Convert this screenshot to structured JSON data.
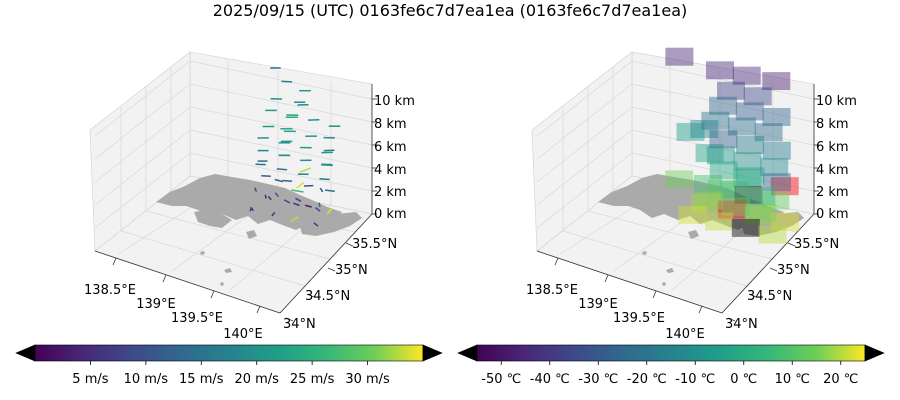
{
  "figure": {
    "title": "2025/09/15 (UTC) 0163fe6c7d7ea1ea (0163fe6c7d7ea1ea)"
  },
  "chart_data": [
    {
      "type": "scatter",
      "kind": "3d-wind-vectors",
      "x_ticks": [
        "138.5°E",
        "139°E",
        "139.5°E",
        "140°E"
      ],
      "y_ticks": [
        "34°N",
        "34.5°N",
        "35°N",
        "35.5°N"
      ],
      "z_ticks": [
        "0 km",
        "2 km",
        "4 km",
        "6 km",
        "8 km",
        "10 km"
      ],
      "grid": true,
      "colorbar": {
        "colormap": "viridis",
        "ticks": [
          "5 m/s",
          "10 m/s",
          "15 m/s",
          "20 m/s",
          "25 m/s",
          "30 m/s"
        ],
        "tick_values": [
          5,
          10,
          15,
          20,
          25,
          30
        ],
        "range": [
          0,
          35
        ],
        "extend_low_color": "#000000",
        "extend_high_color": "#ff0000"
      },
      "levels_km": [
        1,
        1.6,
        2.4,
        3.3,
        4.2,
        5.2,
        6.3,
        7.4,
        8.6,
        9.7,
        10.9
      ],
      "vectors": [
        {
          "lon": 139.2,
          "lat": 35.18,
          "alt_km": 1.0,
          "speed": 4,
          "dir_deg": 160
        },
        {
          "lon": 139.4,
          "lat": 35.18,
          "alt_km": 1.0,
          "speed": 6,
          "dir_deg": 200
        },
        {
          "lon": 139.6,
          "lat": 35.18,
          "alt_km": 1.0,
          "speed": 33,
          "dir_deg": 215
        },
        {
          "lon": 139.8,
          "lat": 35.18,
          "alt_km": 1.0,
          "speed": 7,
          "dir_deg": 150
        },
        {
          "lon": 139.2,
          "lat": 35.45,
          "alt_km": 1.0,
          "speed": 5,
          "dir_deg": 175
        },
        {
          "lon": 139.4,
          "lat": 35.45,
          "alt_km": 1.0,
          "speed": 8,
          "dir_deg": 140
        },
        {
          "lon": 139.6,
          "lat": 35.45,
          "alt_km": 1.0,
          "speed": 3,
          "dir_deg": 120
        },
        {
          "lon": 139.8,
          "lat": 35.45,
          "alt_km": 1.0,
          "speed": 34,
          "dir_deg": 200
        },
        {
          "lon": 139.3,
          "lat": 35.32,
          "alt_km": 1.6,
          "speed": 6,
          "dir_deg": 160
        },
        {
          "lon": 139.55,
          "lat": 35.32,
          "alt_km": 1.6,
          "speed": 5,
          "dir_deg": 130
        },
        {
          "lon": 139.75,
          "lat": 35.32,
          "alt_km": 1.6,
          "speed": 9,
          "dir_deg": 150
        },
        {
          "lon": 139.45,
          "lat": 35.55,
          "alt_km": 1.6,
          "speed": 27,
          "dir_deg": 110
        },
        {
          "lon": 139.25,
          "lat": 35.05,
          "alt_km": 1.6,
          "speed": 7,
          "dir_deg": 190
        },
        {
          "lon": 139.2,
          "lat": 35.25,
          "alt_km": 2.4,
          "speed": 9,
          "dir_deg": 170
        },
        {
          "lon": 139.4,
          "lat": 35.25,
          "alt_km": 2.4,
          "speed": 10,
          "dir_deg": 160
        },
        {
          "lon": 139.6,
          "lat": 35.25,
          "alt_km": 2.4,
          "speed": 8,
          "dir_deg": 140
        },
        {
          "lon": 139.8,
          "lat": 35.25,
          "alt_km": 2.4,
          "speed": 12,
          "dir_deg": 175
        },
        {
          "lon": 139.3,
          "lat": 35.5,
          "alt_km": 2.4,
          "speed": 11,
          "dir_deg": 120
        },
        {
          "lon": 139.5,
          "lat": 35.5,
          "alt_km": 2.4,
          "speed": 34,
          "dir_deg": 210
        },
        {
          "lon": 139.7,
          "lat": 35.5,
          "alt_km": 2.4,
          "speed": 9,
          "dir_deg": 165
        },
        {
          "lon": 139.25,
          "lat": 35.35,
          "alt_km": 3.3,
          "speed": 12,
          "dir_deg": 95
        },
        {
          "lon": 139.45,
          "lat": 35.35,
          "alt_km": 3.3,
          "speed": 13,
          "dir_deg": 100
        },
        {
          "lon": 139.65,
          "lat": 35.35,
          "alt_km": 3.3,
          "speed": 11,
          "dir_deg": 85
        },
        {
          "lon": 139.85,
          "lat": 35.35,
          "alt_km": 3.3,
          "speed": 14,
          "dir_deg": 105
        },
        {
          "lon": 139.1,
          "lat": 35.6,
          "alt_km": 3.3,
          "speed": 13,
          "dir_deg": 90
        },
        {
          "lon": 139.5,
          "lat": 35.6,
          "alt_km": 3.3,
          "speed": 33,
          "dir_deg": 230
        },
        {
          "lon": 139.2,
          "lat": 35.35,
          "alt_km": 4.2,
          "speed": 15,
          "dir_deg": 95
        },
        {
          "lon": 139.4,
          "lat": 35.35,
          "alt_km": 4.2,
          "speed": 16,
          "dir_deg": 100
        },
        {
          "lon": 139.6,
          "lat": 35.35,
          "alt_km": 4.2,
          "speed": 17,
          "dir_deg": 92
        },
        {
          "lon": 139.8,
          "lat": 35.35,
          "alt_km": 4.2,
          "speed": 15,
          "dir_deg": 98
        },
        {
          "lon": 139.3,
          "lat": 35.6,
          "alt_km": 4.2,
          "speed": 16,
          "dir_deg": 88
        },
        {
          "lon": 139.7,
          "lat": 35.6,
          "alt_km": 4.2,
          "speed": 18,
          "dir_deg": 95
        },
        {
          "lon": 139.2,
          "lat": 35.4,
          "alt_km": 5.2,
          "speed": 18,
          "dir_deg": 90
        },
        {
          "lon": 139.4,
          "lat": 35.4,
          "alt_km": 5.2,
          "speed": 20,
          "dir_deg": 92
        },
        {
          "lon": 139.6,
          "lat": 35.4,
          "alt_km": 5.2,
          "speed": 19,
          "dir_deg": 88
        },
        {
          "lon": 139.8,
          "lat": 35.4,
          "alt_km": 5.2,
          "speed": 21,
          "dir_deg": 95
        },
        {
          "lon": 139.3,
          "lat": 35.65,
          "alt_km": 5.2,
          "speed": 20,
          "dir_deg": 90
        },
        {
          "lon": 139.7,
          "lat": 35.65,
          "alt_km": 5.2,
          "speed": 17,
          "dir_deg": 86
        },
        {
          "lon": 139.2,
          "lat": 35.4,
          "alt_km": 6.3,
          "speed": 20,
          "dir_deg": 88
        },
        {
          "lon": 139.4,
          "lat": 35.4,
          "alt_km": 6.3,
          "speed": 21,
          "dir_deg": 90
        },
        {
          "lon": 139.6,
          "lat": 35.4,
          "alt_km": 6.3,
          "speed": 22,
          "dir_deg": 92
        },
        {
          "lon": 139.8,
          "lat": 35.4,
          "alt_km": 6.3,
          "speed": 20,
          "dir_deg": 87
        },
        {
          "lon": 139.3,
          "lat": 35.65,
          "alt_km": 6.3,
          "speed": 23,
          "dir_deg": 90
        },
        {
          "lon": 139.7,
          "lat": 35.65,
          "alt_km": 6.3,
          "speed": 19,
          "dir_deg": 94
        },
        {
          "lon": 139.25,
          "lat": 35.4,
          "alt_km": 7.4,
          "speed": 22,
          "dir_deg": 89
        },
        {
          "lon": 139.45,
          "lat": 35.4,
          "alt_km": 7.4,
          "speed": 23,
          "dir_deg": 91
        },
        {
          "lon": 139.65,
          "lat": 35.4,
          "alt_km": 7.4,
          "speed": 21,
          "dir_deg": 88
        },
        {
          "lon": 139.35,
          "lat": 35.65,
          "alt_km": 7.4,
          "speed": 24,
          "dir_deg": 92
        },
        {
          "lon": 139.75,
          "lat": 35.65,
          "alt_km": 7.4,
          "speed": 20,
          "dir_deg": 90
        },
        {
          "lon": 139.25,
          "lat": 35.45,
          "alt_km": 8.6,
          "speed": 21,
          "dir_deg": 90
        },
        {
          "lon": 139.45,
          "lat": 35.45,
          "alt_km": 8.6,
          "speed": 22,
          "dir_deg": 93
        },
        {
          "lon": 139.65,
          "lat": 35.45,
          "alt_km": 8.6,
          "speed": 20,
          "dir_deg": 87
        },
        {
          "lon": 139.4,
          "lat": 35.7,
          "alt_km": 8.6,
          "speed": 19,
          "dir_deg": 90
        },
        {
          "lon": 139.3,
          "lat": 35.45,
          "alt_km": 9.7,
          "speed": 20,
          "dir_deg": 92
        },
        {
          "lon": 139.55,
          "lat": 35.45,
          "alt_km": 9.7,
          "speed": 18,
          "dir_deg": 88
        },
        {
          "lon": 139.45,
          "lat": 35.7,
          "alt_km": 9.7,
          "speed": 21,
          "dir_deg": 90
        },
        {
          "lon": 139.35,
          "lat": 35.55,
          "alt_km": 10.9,
          "speed": 17,
          "dir_deg": 95
        },
        {
          "lon": 139.15,
          "lat": 35.75,
          "alt_km": 10.9,
          "speed": 16,
          "dir_deg": 88
        }
      ]
    },
    {
      "type": "heatmap",
      "kind": "3d-temperature-voxels",
      "x_ticks": [
        "138.5°E",
        "139°E",
        "139.5°E",
        "140°E"
      ],
      "y_ticks": [
        "34°N",
        "34.5°N",
        "35°N",
        "35.5°N"
      ],
      "z_ticks": [
        "0 km",
        "2 km",
        "4 km",
        "6 km",
        "8 km",
        "10 km"
      ],
      "grid": true,
      "colorbar": {
        "colormap": "viridis",
        "ticks": [
          "-50 ℃",
          "-40 ℃",
          "-30 ℃",
          "-20 ℃",
          "-10 ℃",
          "0 ℃",
          "10 ℃",
          "20 ℃"
        ],
        "tick_values": [
          -50,
          -40,
          -30,
          -20,
          -10,
          0,
          10,
          20
        ],
        "range": [
          -55,
          25
        ],
        "extend_low_color": "#ff0000",
        "extend_high_color": "#000000"
      },
      "voxels": [
        {
          "lon": 139.2,
          "lat": 35.15,
          "alt_km": 0.6,
          "temp": 22
        },
        {
          "lon": 139.45,
          "lat": 35.15,
          "alt_km": 0.6,
          "temp": 21
        },
        {
          "lon": 139.7,
          "lat": 35.15,
          "alt_km": 0.6,
          "temp": 26
        },
        {
          "lon": 139.95,
          "lat": 35.15,
          "alt_km": 0.6,
          "temp": 20
        },
        {
          "lon": 139.2,
          "lat": 35.4,
          "alt_km": 0.6,
          "temp": 19
        },
        {
          "lon": 139.45,
          "lat": 35.4,
          "alt_km": 0.6,
          "temp": -58
        },
        {
          "lon": 139.7,
          "lat": 35.4,
          "alt_km": 0.6,
          "temp": 18
        },
        {
          "lon": 139.95,
          "lat": 35.4,
          "alt_km": 0.6,
          "temp": 23
        },
        {
          "lon": 139.3,
          "lat": 35.27,
          "alt_km": 1.6,
          "temp": 17
        },
        {
          "lon": 139.55,
          "lat": 35.27,
          "alt_km": 1.6,
          "temp": 14
        },
        {
          "lon": 139.8,
          "lat": 35.27,
          "alt_km": 1.6,
          "temp": 16
        },
        {
          "lon": 139.3,
          "lat": 35.52,
          "alt_km": 1.6,
          "temp": 12
        },
        {
          "lon": 139.55,
          "lat": 35.52,
          "alt_km": 1.6,
          "temp": 26
        },
        {
          "lon": 139.8,
          "lat": 35.52,
          "alt_km": 1.6,
          "temp": 13
        },
        {
          "lon": 138.9,
          "lat": 35.52,
          "alt_km": 1.6,
          "temp": 15
        },
        {
          "lon": 139.25,
          "lat": 35.35,
          "alt_km": 2.6,
          "temp": 8
        },
        {
          "lon": 139.5,
          "lat": 35.35,
          "alt_km": 2.6,
          "temp": 6
        },
        {
          "lon": 139.75,
          "lat": 35.35,
          "alt_km": 2.6,
          "temp": 4
        },
        {
          "lon": 139.5,
          "lat": 35.6,
          "alt_km": 2.6,
          "temp": 5
        },
        {
          "lon": 139.85,
          "lat": 35.6,
          "alt_km": 2.6,
          "temp": -58
        },
        {
          "lon": 139.1,
          "lat": 35.7,
          "alt_km": 3.6,
          "temp": -3
        },
        {
          "lon": 139.35,
          "lat": 35.45,
          "alt_km": 3.6,
          "temp": -2
        },
        {
          "lon": 139.6,
          "lat": 35.45,
          "alt_km": 3.6,
          "temp": -5
        },
        {
          "lon": 139.85,
          "lat": 35.45,
          "alt_km": 3.6,
          "temp": -25
        },
        {
          "lon": 138.85,
          "lat": 35.85,
          "alt_km": 4.4,
          "temp": -6
        },
        {
          "lon": 139.3,
          "lat": 35.5,
          "alt_km": 4.6,
          "temp": -8
        },
        {
          "lon": 139.55,
          "lat": 35.5,
          "alt_km": 4.6,
          "temp": -10
        },
        {
          "lon": 139.8,
          "lat": 35.5,
          "alt_km": 4.6,
          "temp": -12
        },
        {
          "lon": 139.05,
          "lat": 35.7,
          "alt_km": 5.6,
          "temp": -14
        },
        {
          "lon": 139.3,
          "lat": 35.55,
          "alt_km": 5.8,
          "temp": -28
        },
        {
          "lon": 139.55,
          "lat": 35.55,
          "alt_km": 5.8,
          "temp": -16
        },
        {
          "lon": 139.8,
          "lat": 35.55,
          "alt_km": 5.8,
          "temp": -18
        },
        {
          "lon": 139.2,
          "lat": 35.6,
          "alt_km": 7.0,
          "temp": -20
        },
        {
          "lon": 139.45,
          "lat": 35.6,
          "alt_km": 7.0,
          "temp": -22
        },
        {
          "lon": 139.7,
          "lat": 35.6,
          "alt_km": 7.0,
          "temp": -24
        },
        {
          "lon": 139.25,
          "lat": 35.65,
          "alt_km": 8.2,
          "temp": -26
        },
        {
          "lon": 139.5,
          "lat": 35.65,
          "alt_km": 8.2,
          "temp": -28
        },
        {
          "lon": 139.75,
          "lat": 35.65,
          "alt_km": 8.2,
          "temp": -26
        },
        {
          "lon": 139.3,
          "lat": 35.7,
          "alt_km": 9.4,
          "temp": -36
        },
        {
          "lon": 139.55,
          "lat": 35.7,
          "alt_km": 9.4,
          "temp": -34
        },
        {
          "lon": 139.15,
          "lat": 35.8,
          "alt_km": 10.5,
          "temp": -45
        },
        {
          "lon": 139.4,
          "lat": 35.8,
          "alt_km": 10.5,
          "temp": -44
        },
        {
          "lon": 138.7,
          "lat": 35.95,
          "alt_km": 10.3,
          "temp": -46
        },
        {
          "lon": 139.7,
          "lat": 35.75,
          "alt_km": 10.8,
          "temp": -47
        }
      ]
    }
  ]
}
